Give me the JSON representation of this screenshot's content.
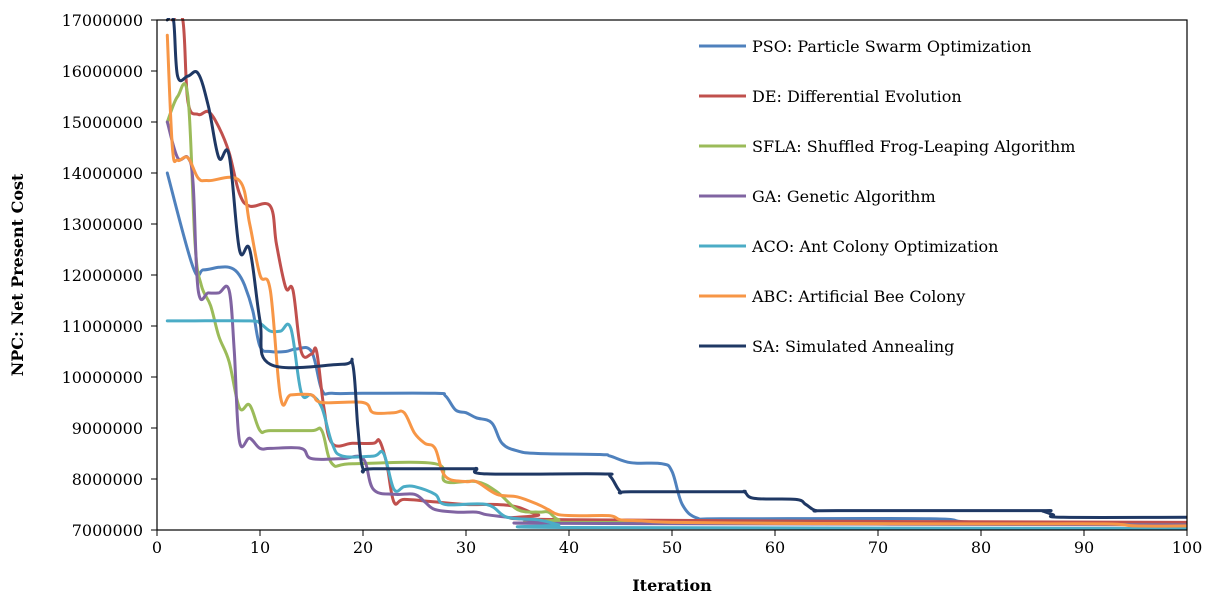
{
  "chart_data": {
    "type": "line",
    "title": "",
    "xlabel": "Iteration",
    "ylabel": "NPC: Net Present Cost",
    "xlim": [
      0,
      100
    ],
    "ylim": [
      7000000,
      17000000
    ],
    "x_ticks": [
      0,
      10,
      20,
      30,
      40,
      50,
      60,
      70,
      80,
      90,
      100
    ],
    "y_ticks": [
      7000000,
      8000000,
      9000000,
      10000000,
      11000000,
      12000000,
      13000000,
      14000000,
      15000000,
      16000000,
      17000000
    ],
    "x_tick_labels": [
      "0",
      "10",
      "20",
      "30",
      "40",
      "50",
      "60",
      "70",
      "80",
      "90",
      "100"
    ],
    "y_tick_labels": [
      "7000000",
      "8000000",
      "9000000",
      "10000000",
      "11000000",
      "12000000",
      "13000000",
      "14000000",
      "15000000",
      "16000000",
      "17000000"
    ],
    "grid": false,
    "legend": "top-right",
    "series": [
      {
        "name": "PSO: Particle Swarm Optimization",
        "color": "#4F81BD",
        "points": [
          [
            1,
            14000000
          ],
          [
            3.5,
            12150000
          ],
          [
            4.5,
            12100000
          ],
          [
            6,
            12150000
          ],
          [
            7,
            12150000
          ],
          [
            7.8,
            12050000
          ],
          [
            8.5,
            11800000
          ],
          [
            9.3,
            11300000
          ],
          [
            10,
            10600000
          ],
          [
            11,
            10500000
          ],
          [
            12.5,
            10500000
          ],
          [
            13.5,
            10550000
          ],
          [
            15,
            10500000
          ],
          [
            16,
            9750000
          ],
          [
            17,
            9680000
          ],
          [
            20,
            9680000
          ],
          [
            27,
            9680000
          ],
          [
            28,
            9630000
          ],
          [
            29,
            9350000
          ],
          [
            30,
            9300000
          ],
          [
            31,
            9200000
          ],
          [
            32.5,
            9100000
          ],
          [
            33.5,
            8700000
          ],
          [
            35,
            8550000
          ],
          [
            37,
            8500000
          ],
          [
            43,
            8480000
          ],
          [
            44,
            8450000
          ],
          [
            46,
            8320000
          ],
          [
            49,
            8300000
          ],
          [
            50,
            8150000
          ],
          [
            51,
            7500000
          ],
          [
            52.5,
            7230000
          ],
          [
            55,
            7220000
          ],
          [
            75,
            7220000
          ],
          [
            80,
            7150000
          ],
          [
            100,
            7120000
          ]
        ]
      },
      {
        "name": "DE: Differential Evolution",
        "color": "#C0504D",
        "points": [
          [
            1.5,
            17000000
          ],
          [
            2.5,
            17000000
          ],
          [
            3,
            15400000
          ],
          [
            4,
            15150000
          ],
          [
            5,
            15200000
          ],
          [
            6,
            14900000
          ],
          [
            7,
            14400000
          ],
          [
            8,
            13600000
          ],
          [
            9,
            13350000
          ],
          [
            11,
            13350000
          ],
          [
            11.6,
            12600000
          ],
          [
            12.5,
            11750000
          ],
          [
            13.2,
            11700000
          ],
          [
            14,
            10500000
          ],
          [
            15,
            10450000
          ],
          [
            15.5,
            10500000
          ],
          [
            16.2,
            9400000
          ],
          [
            17,
            8700000
          ],
          [
            19,
            8700000
          ],
          [
            21,
            8700000
          ],
          [
            21.6,
            8750000
          ],
          [
            22.3,
            8300000
          ],
          [
            23,
            7550000
          ],
          [
            24,
            7600000
          ],
          [
            27,
            7550000
          ],
          [
            30,
            7500000
          ],
          [
            33,
            7500000
          ],
          [
            35,
            7450000
          ],
          [
            37,
            7300000
          ],
          [
            40,
            7200000
          ],
          [
            100,
            7150000
          ]
        ]
      },
      {
        "name": "SFLA: Shuffled Frog-Leaping Algorithm",
        "color": "#9BBB59",
        "points": [
          [
            1,
            15000000
          ],
          [
            2,
            15500000
          ],
          [
            3,
            15500000
          ],
          [
            3.7,
            12600000
          ],
          [
            4.3,
            11800000
          ],
          [
            5.2,
            11400000
          ],
          [
            6,
            10800000
          ],
          [
            7,
            10300000
          ],
          [
            8,
            9400000
          ],
          [
            9,
            9450000
          ],
          [
            10,
            8950000
          ],
          [
            11,
            8950000
          ],
          [
            15,
            8950000
          ],
          [
            16,
            8950000
          ],
          [
            17,
            8300000
          ],
          [
            19,
            8300000
          ],
          [
            27,
            8300000
          ],
          [
            28,
            7950000
          ],
          [
            31,
            7950000
          ],
          [
            33,
            7750000
          ],
          [
            35,
            7400000
          ],
          [
            37,
            7350000
          ],
          [
            38,
            7350000
          ],
          [
            39,
            7200000
          ],
          [
            41,
            7150000
          ],
          [
            100,
            7100000
          ]
        ]
      },
      {
        "name": "GA: Genetic Algorithm",
        "color": "#8064A2",
        "points": [
          [
            1,
            15000000
          ],
          [
            2,
            14300000
          ],
          [
            3,
            14300000
          ],
          [
            3.5,
            13800000
          ],
          [
            4,
            11700000
          ],
          [
            5,
            11650000
          ],
          [
            6,
            11650000
          ],
          [
            7,
            11700000
          ],
          [
            7.5,
            10500000
          ],
          [
            8,
            8750000
          ],
          [
            9,
            8800000
          ],
          [
            10,
            8600000
          ],
          [
            11,
            8600000
          ],
          [
            14,
            8600000
          ],
          [
            15,
            8400000
          ],
          [
            18,
            8400000
          ],
          [
            20,
            8400000
          ],
          [
            21,
            7800000
          ],
          [
            23,
            7700000
          ],
          [
            25,
            7700000
          ],
          [
            26,
            7550000
          ],
          [
            27,
            7400000
          ],
          [
            29,
            7350000
          ],
          [
            31,
            7350000
          ],
          [
            32,
            7300000
          ],
          [
            34,
            7250000
          ],
          [
            36,
            7200000
          ],
          [
            38,
            7150000
          ],
          [
            40,
            7130000
          ],
          [
            100,
            7100000
          ]
        ]
      },
      {
        "name": "ACO: Ant Colony Optimization",
        "color": "#4BACC6",
        "points": [
          [
            1,
            11100000
          ],
          [
            3,
            11100000
          ],
          [
            9,
            11100000
          ],
          [
            10,
            11050000
          ],
          [
            11,
            10900000
          ],
          [
            12,
            10900000
          ],
          [
            13,
            10950000
          ],
          [
            14,
            9700000
          ],
          [
            15,
            9650000
          ],
          [
            16,
            9400000
          ],
          [
            17,
            8700000
          ],
          [
            18,
            8450000
          ],
          [
            21,
            8450000
          ],
          [
            22,
            8500000
          ],
          [
            23,
            7800000
          ],
          [
            24,
            7850000
          ],
          [
            25,
            7850000
          ],
          [
            27,
            7700000
          ],
          [
            28,
            7500000
          ],
          [
            32,
            7500000
          ],
          [
            34,
            7250000
          ],
          [
            37,
            7200000
          ],
          [
            39,
            7100000
          ],
          [
            40,
            7050000
          ],
          [
            100,
            7030000
          ]
        ]
      },
      {
        "name": "ABC: Artificial Bee Colony",
        "color": "#F79646",
        "points": [
          [
            1,
            16700000
          ],
          [
            1.5,
            14500000
          ],
          [
            2,
            14250000
          ],
          [
            3,
            14300000
          ],
          [
            4,
            13900000
          ],
          [
            5,
            13850000
          ],
          [
            8,
            13850000
          ],
          [
            9,
            13000000
          ],
          [
            10,
            12000000
          ],
          [
            11,
            11700000
          ],
          [
            12,
            9600000
          ],
          [
            13,
            9650000
          ],
          [
            15,
            9650000
          ],
          [
            16,
            9500000
          ],
          [
            20,
            9500000
          ],
          [
            21,
            9300000
          ],
          [
            23,
            9300000
          ],
          [
            24,
            9300000
          ],
          [
            25,
            8900000
          ],
          [
            26,
            8700000
          ],
          [
            27,
            8600000
          ],
          [
            28,
            8050000
          ],
          [
            30,
            7950000
          ],
          [
            31,
            7950000
          ],
          [
            33,
            7700000
          ],
          [
            35,
            7650000
          ],
          [
            37,
            7500000
          ],
          [
            38,
            7400000
          ],
          [
            39,
            7300000
          ],
          [
            41,
            7280000
          ],
          [
            44,
            7280000
          ],
          [
            45,
            7200000
          ],
          [
            47,
            7180000
          ],
          [
            50,
            7150000
          ],
          [
            60,
            7130000
          ],
          [
            80,
            7120000
          ],
          [
            92,
            7120000
          ],
          [
            95,
            7080000
          ],
          [
            100,
            7080000
          ]
        ]
      },
      {
        "name": "SA: Simulated Annealing",
        "color": "#1F3864",
        "points": [
          [
            1,
            17000000
          ],
          [
            1.6,
            17000000
          ],
          [
            2,
            15900000
          ],
          [
            3,
            15900000
          ],
          [
            4,
            15950000
          ],
          [
            5,
            15300000
          ],
          [
            6,
            14300000
          ],
          [
            7,
            14350000
          ],
          [
            8,
            12500000
          ],
          [
            9,
            12500000
          ],
          [
            10,
            11100000
          ],
          [
            11,
            10250000
          ],
          [
            18,
            10250000
          ],
          [
            19,
            10250000
          ],
          [
            19.5,
            9000000
          ],
          [
            20,
            8200000
          ],
          [
            21,
            8200000
          ],
          [
            30,
            8200000
          ],
          [
            31,
            8200000
          ],
          [
            32,
            8100000
          ],
          [
            43,
            8100000
          ],
          [
            44,
            8050000
          ],
          [
            45,
            7750000
          ],
          [
            46,
            7750000
          ],
          [
            56,
            7750000
          ],
          [
            57,
            7750000
          ],
          [
            58,
            7620000
          ],
          [
            62,
            7600000
          ],
          [
            63,
            7500000
          ],
          [
            64,
            7380000
          ],
          [
            66,
            7380000
          ],
          [
            85,
            7380000
          ],
          [
            86,
            7370000
          ],
          [
            87,
            7300000
          ],
          [
            88,
            7250000
          ],
          [
            100,
            7250000
          ]
        ]
      }
    ]
  }
}
